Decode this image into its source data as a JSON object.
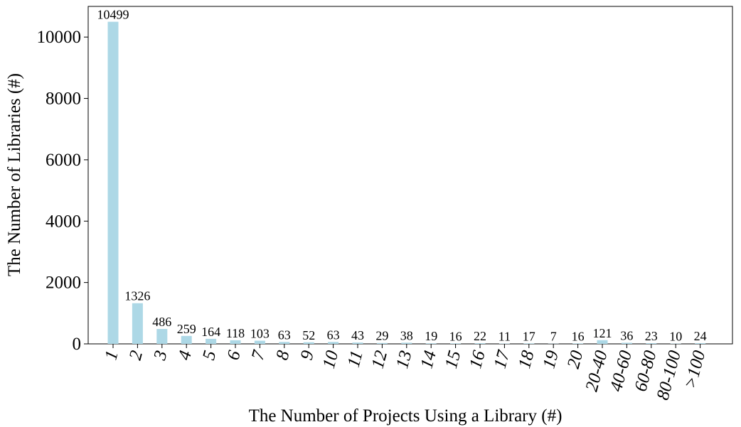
{
  "chart_data": {
    "type": "bar",
    "categories": [
      "1",
      "2",
      "3",
      "4",
      "5",
      "6",
      "7",
      "8",
      "9",
      "10",
      "11",
      "12",
      "13",
      "14",
      "15",
      "16",
      "17",
      "18",
      "19",
      "20",
      "20-40",
      "40-60",
      "60-80",
      "80-100",
      ">100"
    ],
    "values": [
      10499,
      1326,
      486,
      259,
      164,
      118,
      103,
      63,
      52,
      63,
      43,
      29,
      38,
      19,
      16,
      22,
      11,
      17,
      7,
      16,
      121,
      36,
      23,
      10,
      24
    ],
    "xlabel": "The Number of Projects Using a Library (#)",
    "ylabel": "The Number of Libraries (#)",
    "ylim": [
      0,
      11000
    ],
    "yticks": [
      0,
      2000,
      4000,
      6000,
      8000,
      10000
    ],
    "grid": false,
    "bar_color": "#add8e6"
  }
}
